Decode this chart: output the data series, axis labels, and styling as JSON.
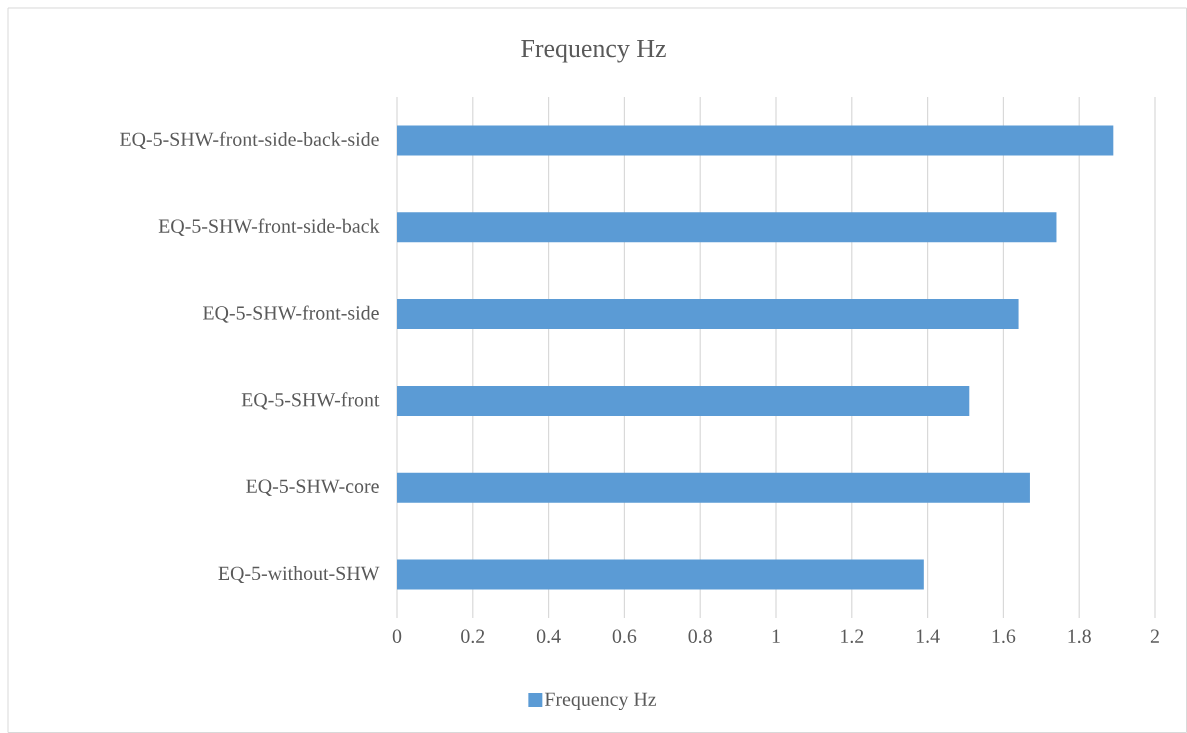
{
  "chart_data": {
    "type": "bar",
    "orientation": "horizontal",
    "title": "Frequency Hz",
    "categories": [
      "EQ-5-SHW-front-side-back-side",
      "EQ-5-SHW-front-side-back",
      "EQ-5-SHW-front-side",
      "EQ-5-SHW-front",
      "EQ-5-SHW-core",
      "EQ-5-without-SHW"
    ],
    "series": [
      {
        "name": "Frequency Hz",
        "color": "#5b9bd5",
        "values": [
          1.89,
          1.74,
          1.64,
          1.51,
          1.67,
          1.39
        ]
      }
    ],
    "xlim": [
      0,
      2
    ],
    "xticks": [
      0,
      0.2,
      0.4,
      0.6,
      0.8,
      1,
      1.2,
      1.4,
      1.6,
      1.8,
      2
    ],
    "grid": "x",
    "legend": "bottom"
  }
}
